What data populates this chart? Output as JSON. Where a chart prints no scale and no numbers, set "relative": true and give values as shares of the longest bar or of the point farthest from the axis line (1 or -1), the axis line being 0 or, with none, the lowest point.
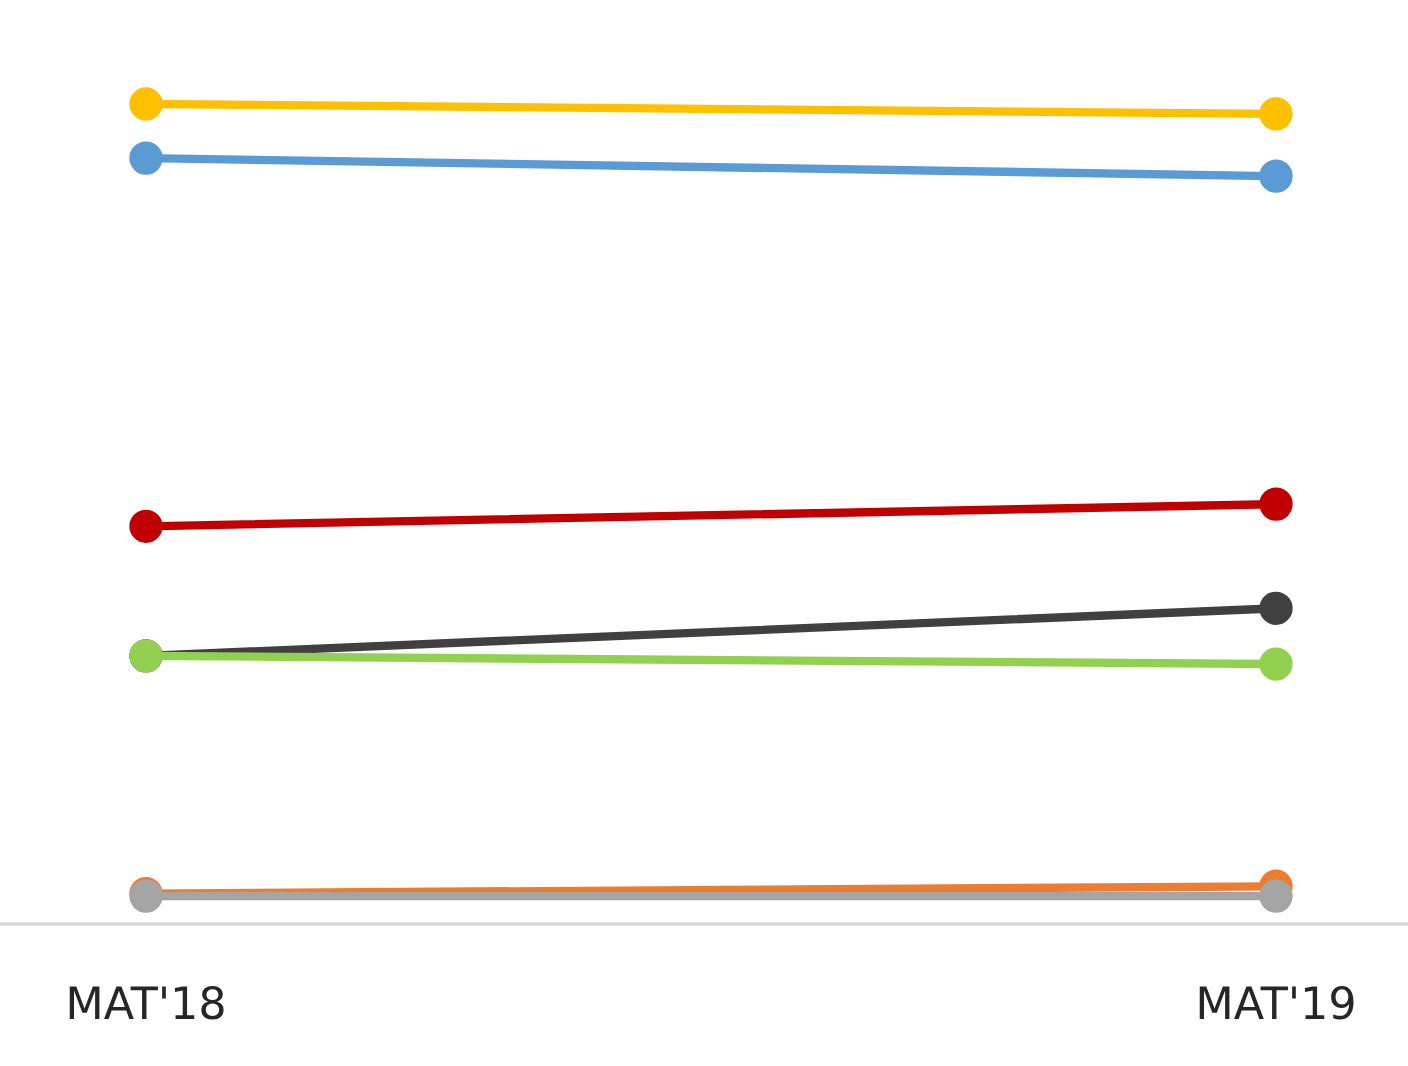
{
  "chart_data": {
    "type": "line",
    "relative": true,
    "categories": [
      "MAT'18",
      "MAT'19"
    ],
    "marker": "circle",
    "line_style": "solid",
    "grid": false,
    "series": [
      {
        "color": "#ffc000",
        "values": [
          1,
          0.988
        ]
      },
      {
        "color": "#5b9bd5",
        "values": [
          0.934,
          0.912
        ]
      },
      {
        "color": "#c00000",
        "values": [
          0.485,
          0.512
        ]
      },
      {
        "color": "#404040",
        "values": [
          0.327,
          0.385
        ]
      },
      {
        "color": "#92d050",
        "values": [
          0.327,
          0.317
        ]
      },
      {
        "color": "#ed7d31",
        "values": [
          0.037,
          0.046
        ]
      },
      {
        "color": "#a5a5a5",
        "values": [
          0.034,
          0.034
        ]
      }
    ]
  }
}
